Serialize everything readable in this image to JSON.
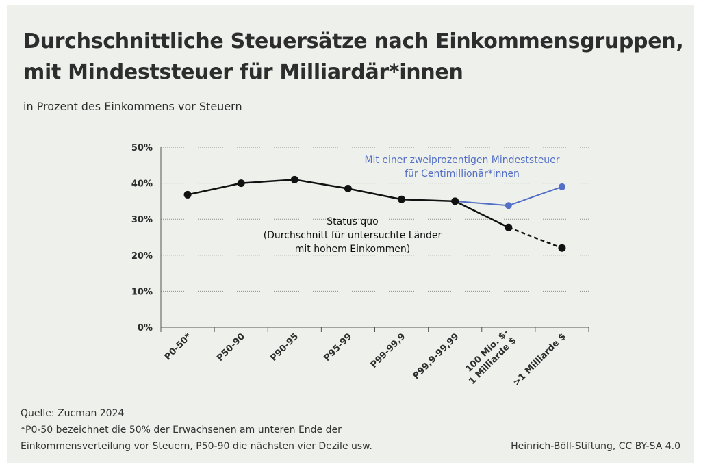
{
  "colors": {
    "status_quo": "#111111",
    "min_tax": "#5470c6",
    "grid": "#8c8c8c",
    "text": "#2d2d2d"
  },
  "title_line1": "Durchschnittliche Steuersätze nach Einkommensgruppen,",
  "title_line2": "mit Mindeststeuer für Milliardär*innen",
  "subtitle": "in Prozent des Einkommens vor Steuern",
  "source": "Quelle: Zucman 2024",
  "note_line1": "*P0-50 bezeichnet die 50% der Erwachsenen am unteren Ende der",
  "note_line2": "Einkommensverteilung vor Steuern, P50-90 die nächsten vier Dezile usw.",
  "credit": "Heinrich-Böll-Stiftung, CC BY-SA 4.0",
  "chart_data": {
    "type": "line",
    "title": "Durchschnittliche Steuersätze nach Einkommensgruppen, mit Mindeststeuer für Milliardär*innen",
    "ylabel": "in Prozent des Einkommens vor Steuern",
    "ylim": [
      0,
      50
    ],
    "yticks": [
      "0%",
      "10%",
      "20%",
      "30%",
      "40%",
      "50%"
    ],
    "categories": [
      "P0-50*",
      "P50-90",
      "P90-95",
      "P95-99",
      "P99-99,9",
      "P99,9-99,99",
      "100 Mio. $-\n1 Milliarde $",
      ">1 Milliarde $"
    ],
    "series": [
      {
        "name": "Status quo",
        "annotation": [
          "Status quo",
          "(Durchschnitt für untersuchte Länder",
          "mit hohem Einkommen)"
        ],
        "values": [
          36.8,
          40.0,
          41.0,
          38.5,
          35.5,
          35.0,
          27.7,
          22.0
        ],
        "dashed_last_segment": true
      },
      {
        "name": "Mit einer zweiprozentigen Mindeststeuer für Centimillionär*innen",
        "annotation": [
          "Mit einer zweiprozentigen Mindeststeuer",
          "für Centimillionär*innen"
        ],
        "values": [
          null,
          null,
          null,
          null,
          null,
          35.0,
          33.8,
          39.0
        ]
      }
    ]
  }
}
